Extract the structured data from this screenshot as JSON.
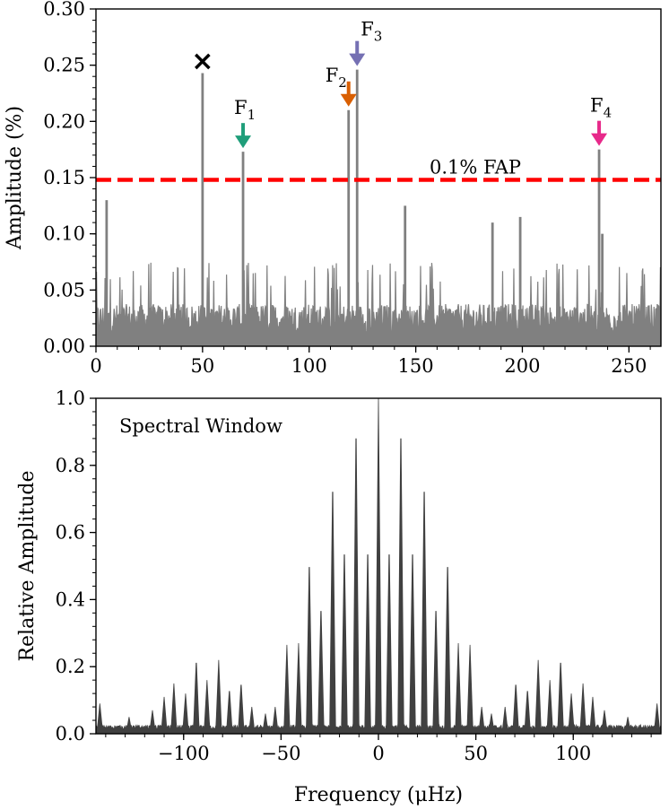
{
  "figure": {
    "xlabel": "Frequency (μHz)"
  },
  "chart_data": [
    {
      "type": "area",
      "name": "amplitude-spectrum",
      "ylabel": "Amplitude (%)",
      "xlim": [
        0,
        265
      ],
      "ylim": [
        0,
        0.3
      ],
      "xticks": [
        0,
        50,
        100,
        150,
        200,
        250
      ],
      "xtick_labels": [
        "0",
        "50",
        "100",
        "150",
        "200",
        "250"
      ],
      "yticks": [
        0,
        0.05,
        0.1,
        0.15,
        0.2,
        0.25,
        0.3
      ],
      "ytick_labels": [
        "0.00",
        "0.05",
        "0.10",
        "0.15",
        "0.20",
        "0.25",
        "0.30"
      ],
      "color": "#808080",
      "noise_level": 0.03,
      "peaks": [
        {
          "x": 5,
          "y": 0.13
        },
        {
          "x": 50,
          "y": 0.243
        },
        {
          "x": 69,
          "y": 0.173
        },
        {
          "x": 118.5,
          "y": 0.21
        },
        {
          "x": 122.5,
          "y": 0.246
        },
        {
          "x": 145,
          "y": 0.125
        },
        {
          "x": 186,
          "y": 0.11
        },
        {
          "x": 199,
          "y": 0.115
        },
        {
          "x": 236,
          "y": 0.175
        },
        {
          "x": 237.5,
          "y": 0.1
        }
      ],
      "threshold": {
        "y": 0.148,
        "label": "0.1% FAP",
        "color": "#ff0000"
      },
      "annotations": [
        {
          "label": "F",
          "subscript": "1",
          "x": 69,
          "color": "#1f9e7a"
        },
        {
          "label": "F",
          "subscript": "2",
          "x": 118.5,
          "color": "#d95f02"
        },
        {
          "label": "F",
          "subscript": "3",
          "x": 122.5,
          "color": "#7570b3"
        },
        {
          "label": "F",
          "subscript": "4",
          "x": 236,
          "color": "#e7298a"
        }
      ],
      "marker": {
        "x": 50,
        "y": 0.253,
        "symbol": "×"
      }
    },
    {
      "type": "area",
      "name": "spectral-window",
      "title": "Spectral Window",
      "ylabel": "Relative Amplitude",
      "xlim": [
        -145,
        145
      ],
      "ylim": [
        0,
        1.0
      ],
      "xticks": [
        -100,
        -50,
        0,
        50,
        100
      ],
      "xtick_labels": [
        "−100",
        "−50",
        "0",
        "50",
        "100"
      ],
      "yticks": [
        0,
        0.2,
        0.4,
        0.6,
        0.8,
        1.0
      ],
      "ytick_labels": [
        "0.0",
        "0.2",
        "0.4",
        "0.6",
        "0.8",
        "1.0"
      ],
      "color": "#404040",
      "peaks": [
        {
          "x": -143,
          "y": 0.09
        },
        {
          "x": -128,
          "y": 0.05
        },
        {
          "x": -116,
          "y": 0.07
        },
        {
          "x": -110,
          "y": 0.11
        },
        {
          "x": -105,
          "y": 0.15
        },
        {
          "x": -99,
          "y": 0.12
        },
        {
          "x": -93.5,
          "y": 0.225
        },
        {
          "x": -88,
          "y": 0.16
        },
        {
          "x": -82,
          "y": 0.22
        },
        {
          "x": -76.5,
          "y": 0.135
        },
        {
          "x": -70.5,
          "y": 0.155
        },
        {
          "x": -65,
          "y": 0.08
        },
        {
          "x": -58,
          "y": 0.06
        },
        {
          "x": -53,
          "y": 0.08
        },
        {
          "x": -47,
          "y": 0.265
        },
        {
          "x": -41,
          "y": 0.27
        },
        {
          "x": -35.5,
          "y": 0.53
        },
        {
          "x": -29.5,
          "y": 0.39
        },
        {
          "x": -23.5,
          "y": 0.77
        },
        {
          "x": -17.5,
          "y": 0.57
        },
        {
          "x": -11.5,
          "y": 0.94
        },
        {
          "x": -5.5,
          "y": 0.57
        },
        {
          "x": 0,
          "y": 1.0
        },
        {
          "x": 5.5,
          "y": 0.57
        },
        {
          "x": 11.5,
          "y": 0.94
        },
        {
          "x": 17.5,
          "y": 0.57
        },
        {
          "x": 23.5,
          "y": 0.77
        },
        {
          "x": 29.5,
          "y": 0.39
        },
        {
          "x": 35.5,
          "y": 0.53
        },
        {
          "x": 41,
          "y": 0.27
        },
        {
          "x": 47,
          "y": 0.265
        },
        {
          "x": 53,
          "y": 0.08
        },
        {
          "x": 58,
          "y": 0.06
        },
        {
          "x": 65,
          "y": 0.08
        },
        {
          "x": 70.5,
          "y": 0.155
        },
        {
          "x": 76.5,
          "y": 0.135
        },
        {
          "x": 82,
          "y": 0.22
        },
        {
          "x": 88,
          "y": 0.16
        },
        {
          "x": 93.5,
          "y": 0.225
        },
        {
          "x": 99,
          "y": 0.12
        },
        {
          "x": 105,
          "y": 0.15
        },
        {
          "x": 110,
          "y": 0.11
        },
        {
          "x": 116,
          "y": 0.07
        },
        {
          "x": 128,
          "y": 0.05
        },
        {
          "x": 143,
          "y": 0.09
        }
      ]
    }
  ]
}
